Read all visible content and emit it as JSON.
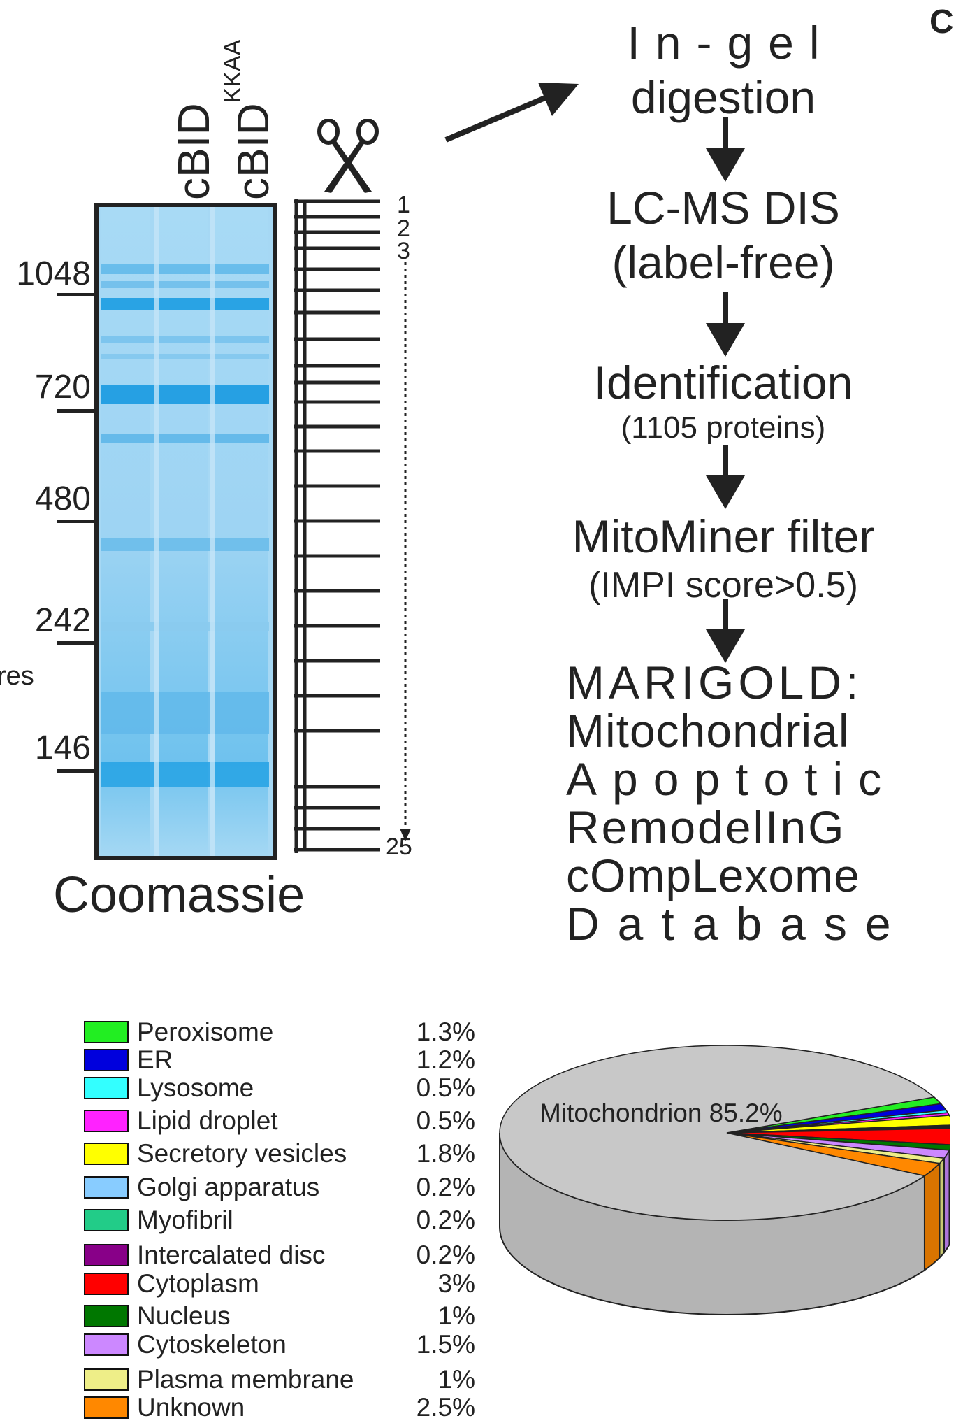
{
  "panel_letter": "C",
  "gel": {
    "lanes": [
      {
        "label": "cBID",
        "superscript": ""
      },
      {
        "label": "cBID",
        "superscript": "KKAA"
      }
    ],
    "markers": [
      "1048",
      "720",
      "480",
      "242",
      "146"
    ],
    "stain_label": "Coomassie",
    "side_fragment": "res",
    "slice_numbers": {
      "first": "1",
      "second": "2",
      "third": "3",
      "last": "25"
    },
    "colors": {
      "gel_bg": "#9fd5f2",
      "band": "#1aa3e6",
      "frame": "#222222"
    }
  },
  "workflow": {
    "step1": {
      "line1": "In-gel",
      "line2": "digestion"
    },
    "step2": {
      "line1": "LC-MS DIS",
      "line2": "(label-free)"
    },
    "step3": {
      "main": "Identification",
      "sub": "(1105 proteins)"
    },
    "step4": {
      "main": "MitoMiner filter",
      "sub": "(IMPI  score>0.5)"
    },
    "acronym": [
      "MARIGOLD:",
      "Mitochondrial",
      "Apoptotic",
      "RemodelInG",
      "cOmpLexome",
      "Database"
    ]
  },
  "chart_data": {
    "type": "pie",
    "title": "",
    "main_slice_label": "Mitochondrion 85.2%",
    "series": [
      {
        "label": "Mitochondrion",
        "value": 85.2,
        "color": "#c8c8c8"
      },
      {
        "label": "Peroxisome",
        "value": 1.3,
        "color": "#22ee22"
      },
      {
        "label": "ER",
        "value": 1.2,
        "color": "#0000dd"
      },
      {
        "label": "Lysosome",
        "value": 0.5,
        "color": "#33ffff"
      },
      {
        "label": "Lipid droplet",
        "value": 0.5,
        "color": "#ff22ff"
      },
      {
        "label": "Secretory vesicles",
        "value": 1.8,
        "color": "#ffff00"
      },
      {
        "label": "Golgi apparatus",
        "value": 0.2,
        "color": "#88ccff"
      },
      {
        "label": "Myofibril",
        "value": 0.2,
        "color": "#22cc88"
      },
      {
        "label": "Intercalated disc",
        "value": 0.2,
        "color": "#880088"
      },
      {
        "label": "Cytoplasm",
        "value": 3,
        "color": "#ff0000"
      },
      {
        "label": "Nucleus",
        "value": 1,
        "color": "#007700"
      },
      {
        "label": "Cytoskeleton",
        "value": 1.5,
        "color": "#cc88ff"
      },
      {
        "label": "Plasma membrane",
        "value": 1,
        "color": "#eeee88"
      },
      {
        "label": "Unknown",
        "value": 2.5,
        "color": "#ff8800"
      }
    ],
    "legend": [
      {
        "label": "Peroxisome",
        "pct": "1.3%",
        "color": "#22ee22"
      },
      {
        "label": "ER",
        "pct": "1.2%",
        "color": "#0000dd"
      },
      {
        "label": "Lysosome",
        "pct": "0.5%",
        "color": "#33ffff"
      },
      {
        "label": "Lipid droplet",
        "pct": "0.5%",
        "color": "#ff22ff"
      },
      {
        "label": "Secretory vesicles",
        "pct": "1.8%",
        "color": "#ffff00"
      },
      {
        "label": "Golgi apparatus",
        "pct": "0.2%",
        "color": "#88ccff"
      },
      {
        "label": "Myofibril",
        "pct": "0.2%",
        "color": "#22cc88"
      },
      {
        "label": "Intercalated disc",
        "pct": "0.2%",
        "color": "#880088"
      },
      {
        "label": "Cytoplasm",
        "pct": "3%",
        "color": "#ff0000"
      },
      {
        "label": "Nucleus",
        "pct": "1%",
        "color": "#007700"
      },
      {
        "label": "Cytoskeleton",
        "pct": "1.5%",
        "color": "#cc88ff"
      },
      {
        "label": "Plasma membrane",
        "pct": "1%",
        "color": "#eeee88"
      },
      {
        "label": "Unknown",
        "pct": "2.5%",
        "color": "#ff8800"
      }
    ],
    "legend_placement": "left",
    "style": "3d"
  }
}
